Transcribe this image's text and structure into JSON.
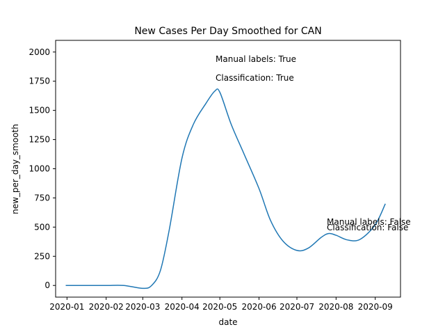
{
  "chart_data": {
    "type": "line",
    "title": "New Cases Per Day Smoothed for CAN",
    "xlabel": "date",
    "ylabel": "new_per_day_smooth",
    "xlim": [
      "2019-12-23",
      "2020-09-21"
    ],
    "ylim": [
      -100,
      2100
    ],
    "xticks": [
      "2020-01",
      "2020-02",
      "2020-03",
      "2020-04",
      "2020-05",
      "2020-06",
      "2020-07",
      "2020-08",
      "2020-09"
    ],
    "yticks": [
      0,
      250,
      500,
      750,
      1000,
      1250,
      1500,
      1750,
      2000
    ],
    "grid": false,
    "legend": "none",
    "series": [
      {
        "color": "#1f77b4",
        "x": [
          "2019-12-31",
          "2020-01-15",
          "2020-02-01",
          "2020-02-15",
          "2020-03-01",
          "2020-03-08",
          "2020-03-15",
          "2020-03-22",
          "2020-04-01",
          "2020-04-10",
          "2020-04-20",
          "2020-04-27",
          "2020-05-01",
          "2020-05-10",
          "2020-05-20",
          "2020-06-01",
          "2020-06-10",
          "2020-06-20",
          "2020-07-01",
          "2020-07-10",
          "2020-07-20",
          "2020-07-26",
          "2020-08-01",
          "2020-08-10",
          "2020-08-20",
          "2020-09-01",
          "2020-09-09"
        ],
        "values": [
          0,
          0,
          0,
          0,
          -25,
          0,
          130,
          480,
          1090,
          1380,
          1560,
          1665,
          1655,
          1380,
          1130,
          830,
          560,
          380,
          300,
          320,
          410,
          445,
          430,
          390,
          395,
          520,
          700
        ]
      }
    ],
    "annotations": [
      {
        "text": "Manual labels: True"
      },
      {
        "text": "Classification: True"
      },
      {
        "text": "Manual labels: False"
      },
      {
        "text": "Classification: False"
      }
    ]
  }
}
